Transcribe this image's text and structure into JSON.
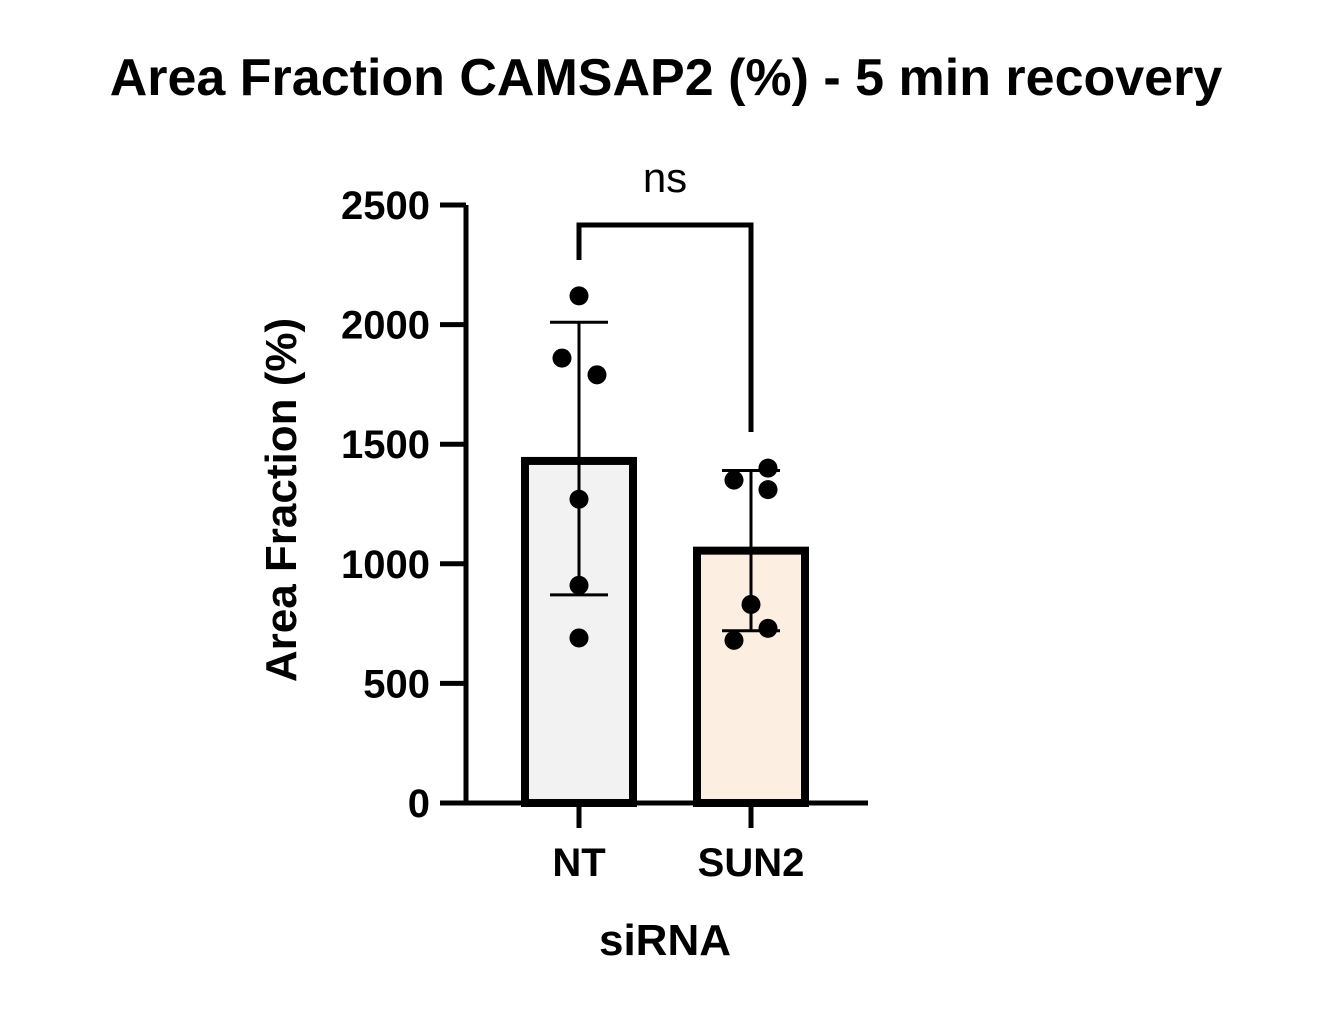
{
  "chart_data": {
    "type": "bar",
    "title": "Area Fraction CAMSAP2 (%) - 5 min recovery",
    "xlabel": "siRNA",
    "ylabel": "Area Fraction  (%)",
    "ylim": [
      0,
      2500
    ],
    "yticks": [
      0,
      500,
      1000,
      1500,
      2000,
      2500
    ],
    "ytick_labels": [
      "0",
      "500",
      "1000",
      "1500",
      "2000",
      "2500"
    ],
    "categories": [
      "NT",
      "SUN2"
    ],
    "means": [
      1430,
      1055
    ],
    "error": [
      {
        "lower": 870,
        "upper": 2010
      },
      {
        "lower": 720,
        "upper": 1390
      }
    ],
    "points": [
      [
        2120,
        1860,
        1790,
        1270,
        910,
        690
      ],
      [
        1400,
        1350,
        1310,
        830,
        730,
        680
      ]
    ],
    "bar_colors": [
      "#f2f2f2",
      "#fdeee2"
    ],
    "significance": {
      "label": "ns",
      "between": [
        "NT",
        "SUN2"
      ]
    },
    "grid": false,
    "legend": "none"
  }
}
